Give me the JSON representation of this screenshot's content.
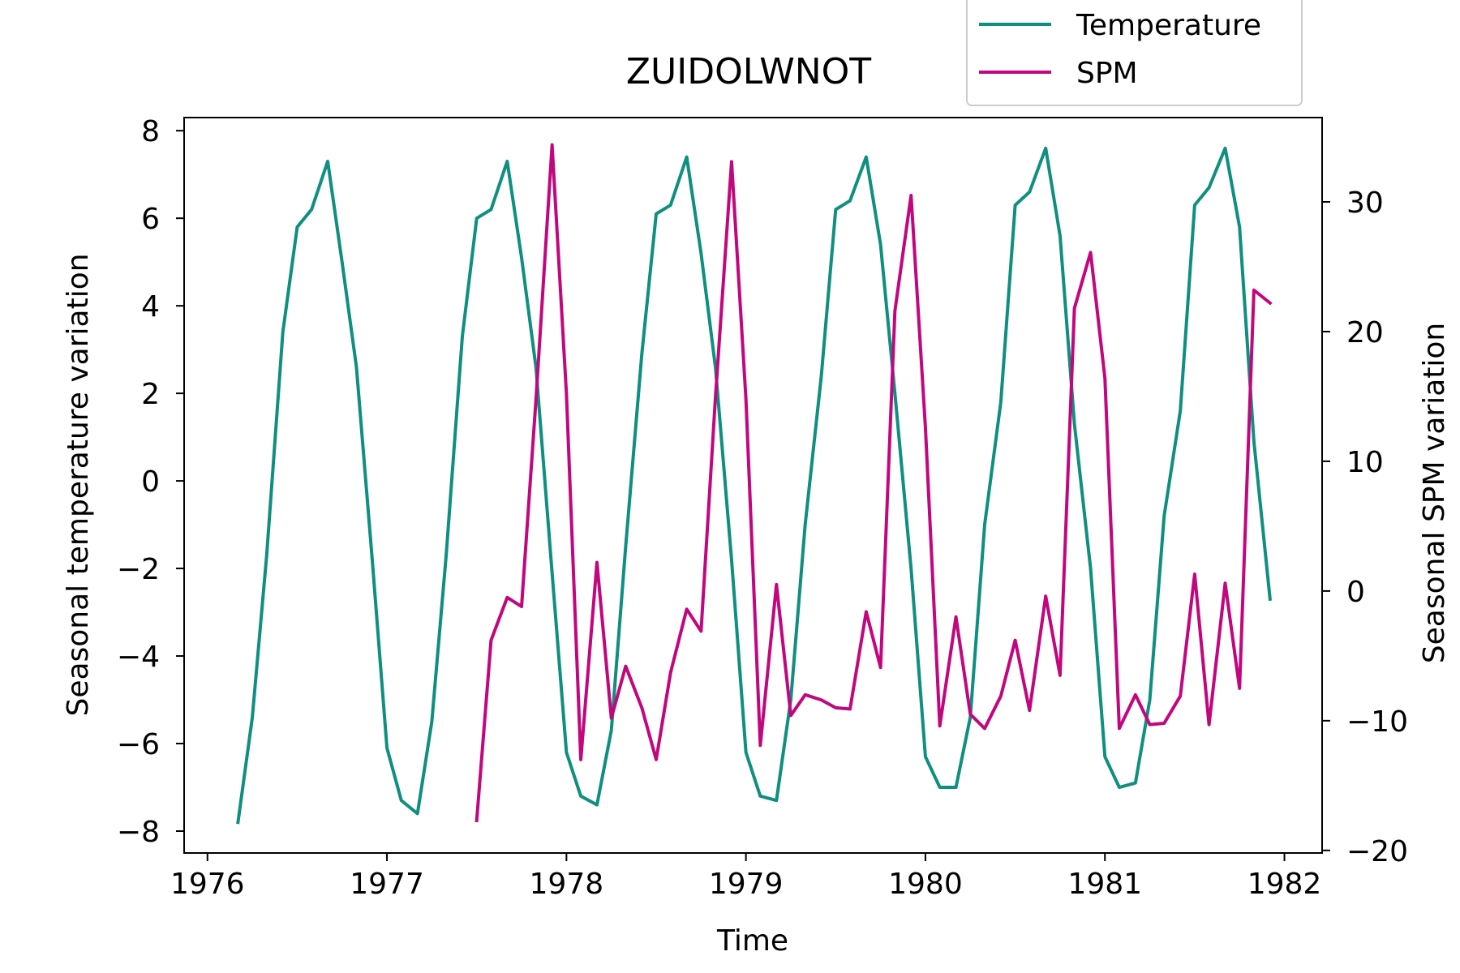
{
  "chart_data": {
    "type": "line",
    "title": "ZUIDOLWNOT",
    "xlabel": "Time",
    "ylabel_left": "Seasonal temperature variation",
    "ylabel_right": "Seasonal SPM variation",
    "xlim": [
      1975.87,
      1982.21
    ],
    "ylim_left": [
      -8.5,
      8.3
    ],
    "ylim_right": [
      -20.2,
      36.5
    ],
    "x_ticks": [
      1976,
      1977,
      1978,
      1979,
      1980,
      1981,
      1982
    ],
    "x_tick_labels": [
      "1976",
      "1977",
      "1978",
      "1979",
      "1980",
      "1981",
      "1982"
    ],
    "y_left_ticks": [
      -8,
      -6,
      -4,
      -2,
      0,
      2,
      4,
      6,
      8
    ],
    "y_left_tick_labels": [
      "−8",
      "−6",
      "−4",
      "−2",
      "0",
      "2",
      "4",
      "6",
      "8"
    ],
    "y_right_ticks": [
      -20,
      -10,
      0,
      10,
      20,
      30
    ],
    "y_right_tick_labels": [
      "−20",
      "−10",
      "0",
      "10",
      "20",
      "30"
    ],
    "grid": false,
    "legend": {
      "placement": "top-right",
      "entries": [
        "Temperature",
        "SPM"
      ]
    },
    "colors": {
      "Temperature": "#0f8f80",
      "SPM": "#c2077e"
    },
    "series": [
      {
        "name": "Temperature",
        "axis": "left",
        "x": [
          1976.17,
          1976.25,
          1976.33,
          1976.42,
          1976.5,
          1976.58,
          1976.67,
          1976.75,
          1976.83,
          1976.92,
          1977.0,
          1977.08,
          1977.17,
          1977.25,
          1977.33,
          1977.42,
          1977.5,
          1977.58,
          1977.67,
          1977.75,
          1977.83,
          1977.92,
          1978.0,
          1978.08,
          1978.17,
          1978.25,
          1978.33,
          1978.42,
          1978.5,
          1978.58,
          1978.67,
          1978.75,
          1978.83,
          1978.92,
          1979.0,
          1979.08,
          1979.17,
          1979.25,
          1979.33,
          1979.42,
          1979.5,
          1979.58,
          1979.67,
          1979.75,
          1979.83,
          1979.92,
          1980.0,
          1980.08,
          1980.17,
          1980.25,
          1980.33,
          1980.42,
          1980.5,
          1980.58,
          1980.67,
          1980.75,
          1980.83,
          1980.92,
          1981.0,
          1981.08,
          1981.17,
          1981.25,
          1981.33,
          1981.42,
          1981.5,
          1981.58,
          1981.67,
          1981.75,
          1981.83,
          1981.92
        ],
        "values": [
          -7.8,
          -5.4,
          -1.7,
          3.4,
          5.8,
          6.2,
          7.3,
          5.0,
          2.6,
          -1.9,
          -6.1,
          -7.3,
          -7.6,
          -5.5,
          -1.7,
          3.3,
          6.0,
          6.2,
          7.3,
          5.1,
          2.6,
          -2.1,
          -6.2,
          -7.2,
          -7.4,
          -5.7,
          -1.5,
          2.9,
          6.1,
          6.3,
          7.4,
          5.2,
          2.6,
          -1.8,
          -6.2,
          -7.2,
          -7.3,
          -5.0,
          -1.0,
          2.4,
          6.2,
          6.4,
          7.4,
          5.4,
          2.0,
          -2.0,
          -6.3,
          -7.0,
          -7.0,
          -5.4,
          -1.0,
          1.8,
          6.3,
          6.6,
          7.6,
          5.6,
          1.3,
          -2.0,
          -6.3,
          -7.0,
          -6.9,
          -5.0,
          -0.8,
          1.6,
          6.3,
          6.7,
          7.6,
          5.8,
          0.9,
          -2.7
        ]
      },
      {
        "name": "SPM",
        "axis": "right",
        "x": [
          1977.5,
          1977.58,
          1977.67,
          1977.75,
          1977.83,
          1977.92,
          1978.0,
          1978.08,
          1978.17,
          1978.25,
          1978.33,
          1978.42,
          1978.5,
          1978.58,
          1978.67,
          1978.75,
          1978.83,
          1978.92,
          1979.0,
          1979.08,
          1979.17,
          1979.25,
          1979.33,
          1979.42,
          1979.5,
          1979.58,
          1979.67,
          1979.75,
          1979.83,
          1979.92,
          1980.0,
          1980.08,
          1980.17,
          1980.25,
          1980.33,
          1980.42,
          1980.5,
          1980.58,
          1980.67,
          1980.75,
          1980.83,
          1980.92,
          1981.0,
          1981.08,
          1981.17,
          1981.25,
          1981.33,
          1981.42,
          1981.5,
          1981.58,
          1981.67,
          1981.75,
          1981.83,
          1981.92
        ],
        "values": [
          -17.7,
          -3.8,
          -0.5,
          -1.2,
          14.7,
          34.4,
          15.2,
          -13.0,
          2.2,
          -9.8,
          -5.8,
          -9.0,
          -13.0,
          -6.3,
          -1.4,
          -3.1,
          14.9,
          33.1,
          14.8,
          -11.9,
          0.5,
          -9.6,
          -8.0,
          -8.4,
          -9.0,
          -9.1,
          -1.6,
          -5.9,
          21.6,
          30.5,
          12.6,
          -10.4,
          -2.0,
          -9.5,
          -10.6,
          -8.1,
          -3.8,
          -9.2,
          -0.4,
          -6.5,
          21.8,
          26.1,
          16.4,
          -10.6,
          -8.0,
          -10.3,
          -10.2,
          -8.1,
          1.3,
          -10.3,
          0.6,
          -7.5,
          23.2,
          22.2
        ]
      }
    ]
  }
}
